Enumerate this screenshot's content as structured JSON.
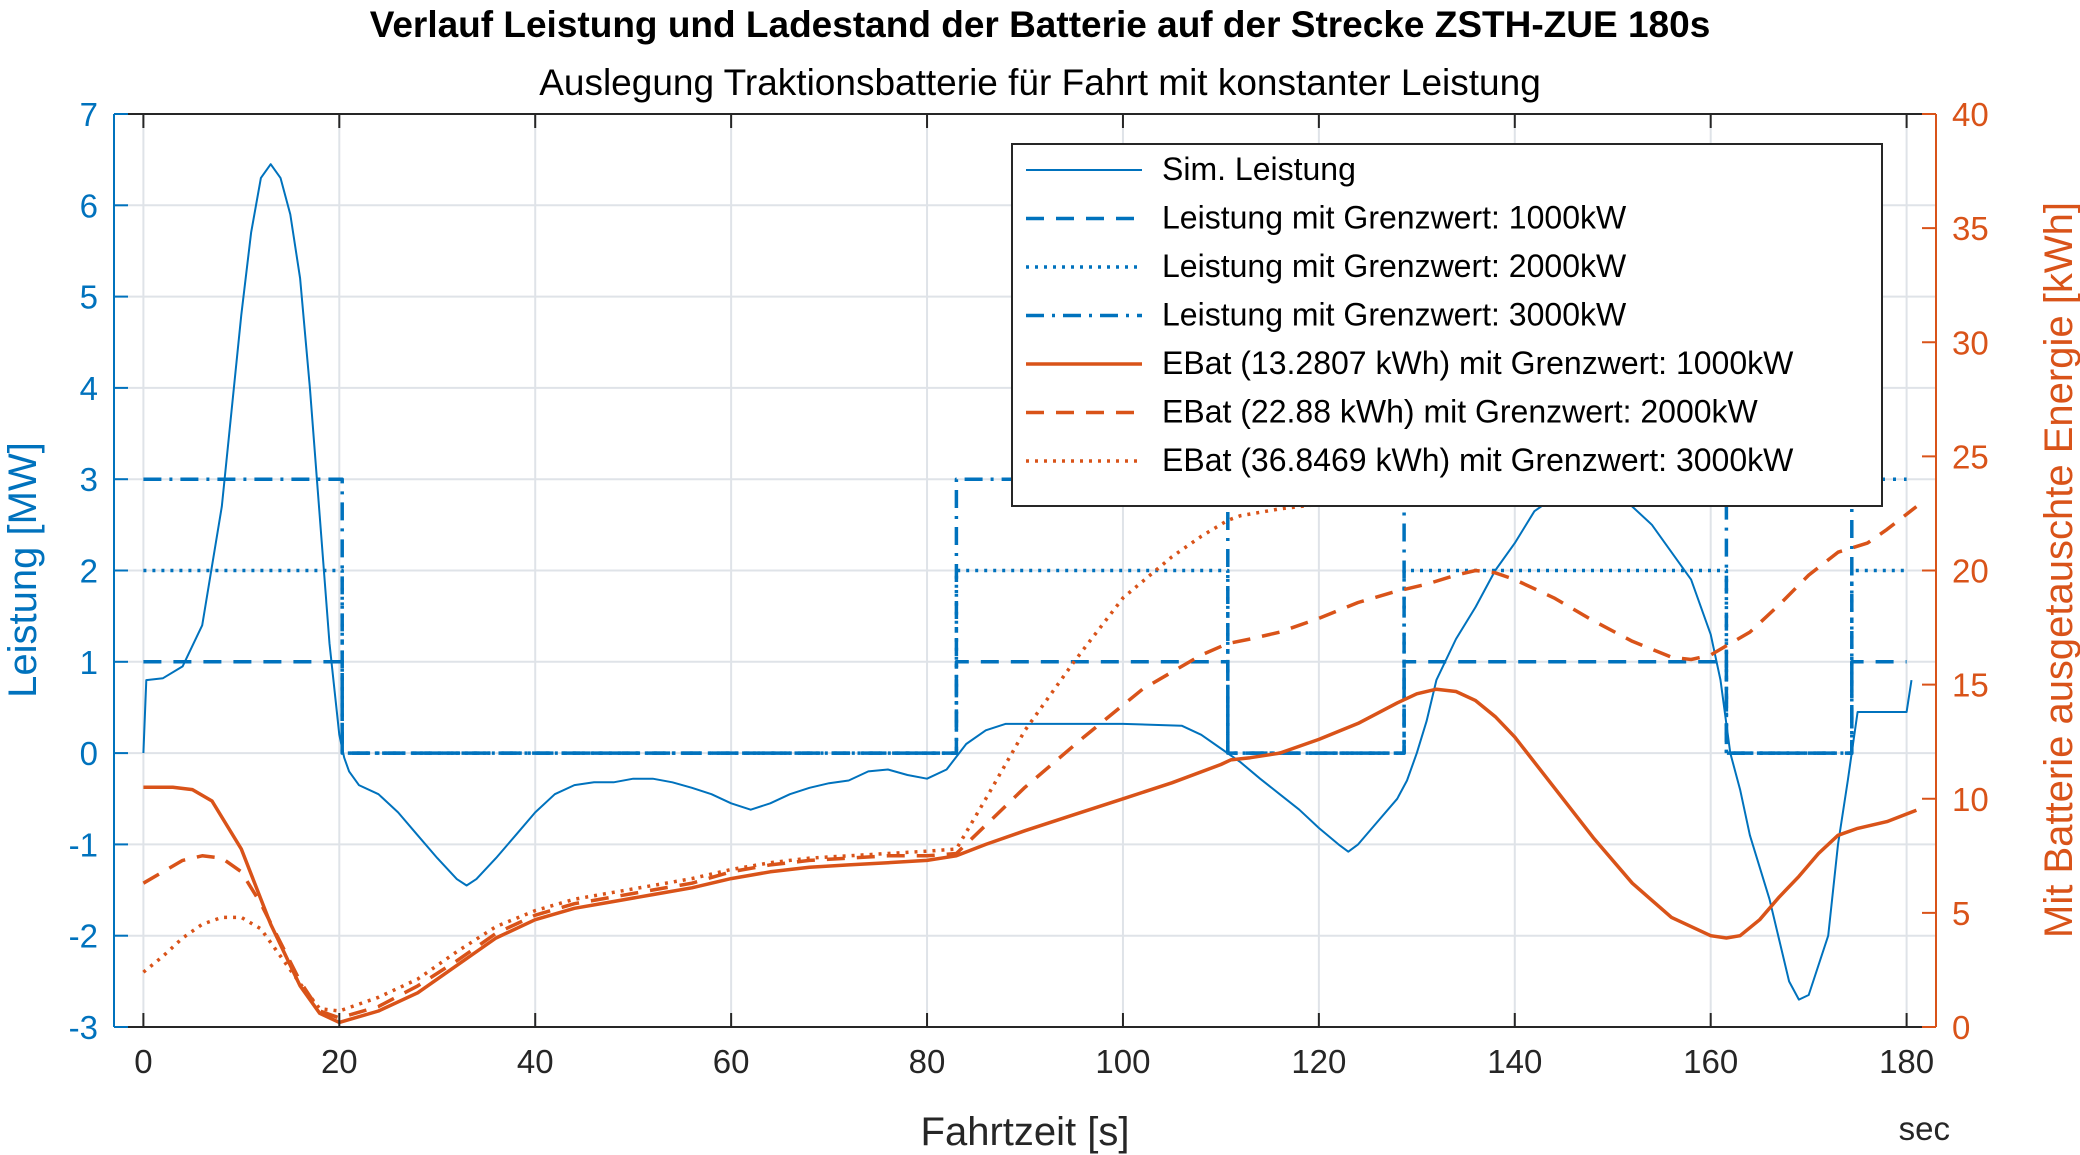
{
  "colors": {
    "left_axis": "#0072BD",
    "right_axis": "#D95319",
    "grid": "#dfe3e8",
    "frame": "#262626"
  },
  "chart_data": {
    "type": "line",
    "title": "Verlauf Leistung und Ladestand der Batterie auf der Strecke ZSTH-ZUE 180s",
    "subtitle": "Auslegung Traktionsbatterie für Fahrt mit konstanter Leistung",
    "xlabel": "Fahrtzeit [s]",
    "x_unit": "sec",
    "ylabel_left": "Leistung [MW]",
    "ylabel_right": "Mit Batterie ausgetauschte Energie [kWh]",
    "xlim": [
      -3,
      183
    ],
    "ylim_left": [
      -3,
      7
    ],
    "ylim_right": [
      0,
      40
    ],
    "x_ticks": [
      "0",
      "20",
      "40",
      "60",
      "80",
      "100",
      "120",
      "140",
      "160",
      "180"
    ],
    "y_ticks_left": [
      "-3",
      "-2",
      "-1",
      "0",
      "1",
      "2",
      "3",
      "4",
      "5",
      "6",
      "7"
    ],
    "y_ticks_right": [
      "0",
      "5",
      "10",
      "15",
      "20",
      "25",
      "30",
      "35",
      "40"
    ],
    "grid": true,
    "legend_position": "top-right",
    "series": [
      {
        "name": "Sim. Leistung",
        "axis": "left",
        "style": "solid",
        "width": "thin",
        "x": [
          0,
          0.3,
          2,
          4,
          6,
          8,
          10,
          11,
          12,
          13,
          14,
          15,
          16,
          17,
          18,
          19,
          20,
          20.5,
          21,
          22,
          24,
          26,
          28,
          30,
          32,
          33,
          34,
          36,
          38,
          40,
          42,
          44,
          46,
          48,
          50,
          52,
          54,
          56,
          58,
          60,
          62,
          64,
          66,
          68,
          70,
          72,
          74,
          76,
          78,
          80,
          82,
          84,
          86,
          88,
          90,
          100,
          106,
          108,
          110,
          112,
          114,
          116,
          118,
          120,
          122,
          123,
          124,
          126,
          128,
          129,
          130,
          131,
          132,
          134,
          136,
          138,
          140,
          142,
          144,
          146,
          148,
          150,
          152,
          154,
          156,
          158,
          160,
          161,
          162,
          163,
          164,
          166,
          168,
          169,
          170,
          172,
          173,
          174,
          175,
          178,
          180,
          180.5
        ],
        "y": [
          0,
          0.8,
          0.82,
          0.95,
          1.4,
          2.7,
          4.8,
          5.7,
          6.3,
          6.45,
          6.3,
          5.9,
          5.2,
          4.0,
          2.6,
          1.2,
          0.2,
          -0.05,
          -0.2,
          -0.35,
          -0.45,
          -0.65,
          -0.9,
          -1.15,
          -1.38,
          -1.45,
          -1.38,
          -1.15,
          -0.9,
          -0.65,
          -0.45,
          -0.35,
          -0.32,
          -0.32,
          -0.28,
          -0.28,
          -0.32,
          -0.38,
          -0.45,
          -0.55,
          -0.62,
          -0.55,
          -0.45,
          -0.38,
          -0.33,
          -0.3,
          -0.2,
          -0.18,
          -0.24,
          -0.28,
          -0.18,
          0.1,
          0.25,
          0.32,
          0.32,
          0.32,
          0.3,
          0.2,
          0.05,
          -0.1,
          -0.28,
          -0.45,
          -0.62,
          -0.82,
          -1.0,
          -1.08,
          -1.0,
          -0.75,
          -0.5,
          -0.3,
          0.0,
          0.35,
          0.8,
          1.25,
          1.6,
          2.0,
          2.3,
          2.65,
          2.8,
          2.9,
          2.9,
          2.85,
          2.7,
          2.5,
          2.2,
          1.9,
          1.3,
          0.8,
          0.0,
          -0.4,
          -0.9,
          -1.6,
          -2.5,
          -2.7,
          -2.65,
          -2.0,
          -1.0,
          -0.3,
          0.45,
          0.45,
          0.45,
          0.8
        ]
      },
      {
        "name": "Leistung mit Grenzwert: 1000kW",
        "axis": "left",
        "style": "dashed",
        "width": "thick",
        "x": [
          0,
          20.3,
          20.3,
          83,
          83,
          110.7,
          110.7,
          128.7,
          128.7,
          161.6,
          161.6,
          174.4,
          174.4,
          180
        ],
        "y": [
          1,
          1,
          0,
          0,
          1,
          1,
          0,
          0,
          1,
          1,
          0,
          0,
          1,
          1
        ]
      },
      {
        "name": "Leistung mit Grenzwert: 2000kW",
        "axis": "left",
        "style": "dotted",
        "width": "thick",
        "x": [
          0,
          20.3,
          20.3,
          83,
          83,
          110.7,
          110.7,
          128.7,
          128.7,
          161.6,
          161.6,
          174.4,
          174.4,
          180
        ],
        "y": [
          2,
          2,
          0,
          0,
          2,
          2,
          0,
          0,
          2,
          2,
          0,
          0,
          2,
          2
        ]
      },
      {
        "name": "Leistung mit Grenzwert: 3000kW",
        "axis": "left",
        "style": "dashdot",
        "width": "thick",
        "x": [
          0,
          20.3,
          20.3,
          83,
          83,
          110.7,
          110.7,
          128.7,
          128.7,
          161.6,
          161.6,
          174.4,
          174.4,
          180
        ],
        "y": [
          3,
          3,
          0,
          0,
          3,
          3,
          0,
          0,
          3,
          3,
          0,
          0,
          3,
          3
        ]
      },
      {
        "name": "EBat (13.2807 kWh) mit Grenzwert: 1000kW",
        "axis": "right",
        "style": "solid",
        "width": "thick",
        "x": [
          0,
          3,
          5,
          7,
          10,
          13,
          16,
          18,
          20,
          24,
          28,
          32,
          36,
          40,
          44,
          48,
          52,
          56,
          60,
          64,
          68,
          72,
          76,
          80,
          83,
          86,
          90,
          95,
          100,
          105,
          110,
          111,
          113,
          116,
          120,
          124,
          128,
          130,
          132,
          134,
          136,
          138,
          140,
          144,
          148,
          152,
          156,
          160,
          161.6,
          163,
          165,
          167,
          169,
          171,
          173,
          175,
          178,
          181
        ],
        "y": [
          10.5,
          10.5,
          10.4,
          9.9,
          7.8,
          4.5,
          1.8,
          0.6,
          0.2,
          0.7,
          1.5,
          2.7,
          3.9,
          4.7,
          5.2,
          5.5,
          5.8,
          6.1,
          6.5,
          6.8,
          7.0,
          7.1,
          7.2,
          7.3,
          7.5,
          8.0,
          8.6,
          9.3,
          10.0,
          10.7,
          11.5,
          11.7,
          11.8,
          12.0,
          12.6,
          13.3,
          14.2,
          14.6,
          14.8,
          14.7,
          14.3,
          13.6,
          12.7,
          10.5,
          8.3,
          6.3,
          4.8,
          4.0,
          3.9,
          4.0,
          4.7,
          5.7,
          6.6,
          7.6,
          8.4,
          8.7,
          9.0,
          9.5
        ]
      },
      {
        "name": "EBat (22.88 kWh) mit Grenzwert: 2000kW",
        "axis": "right",
        "style": "dashed",
        "width": "thick",
        "x": [
          0,
          2,
          4,
          6,
          8,
          10,
          12,
          14,
          16,
          18,
          20,
          24,
          28,
          32,
          36,
          40,
          44,
          48,
          52,
          56,
          60,
          64,
          68,
          72,
          76,
          80,
          83,
          90,
          96,
          102,
          108,
          110.7,
          113,
          116,
          120,
          124,
          128,
          129,
          131,
          134,
          136,
          138,
          140,
          144,
          148,
          152,
          156,
          158,
          160,
          161.6,
          164,
          167,
          170,
          173,
          176,
          178,
          181
        ],
        "y": [
          6.3,
          6.8,
          7.3,
          7.5,
          7.4,
          6.8,
          5.4,
          3.7,
          2.0,
          0.7,
          0.4,
          0.9,
          1.8,
          2.9,
          4.1,
          4.9,
          5.4,
          5.7,
          6.0,
          6.3,
          6.8,
          7.1,
          7.3,
          7.4,
          7.5,
          7.5,
          7.6,
          10.5,
          12.7,
          14.8,
          16.3,
          16.8,
          17.0,
          17.3,
          17.9,
          18.6,
          19.1,
          19.2,
          19.4,
          19.8,
          20.0,
          19.9,
          19.6,
          18.8,
          17.8,
          16.9,
          16.2,
          16.1,
          16.3,
          16.7,
          17.3,
          18.5,
          19.8,
          20.8,
          21.2,
          21.8,
          22.8
        ]
      },
      {
        "name": "EBat (36.8469 kWh) mit Grenzwert: 3000kW",
        "axis": "right",
        "style": "dotted",
        "width": "thick",
        "x": [
          0,
          2,
          4,
          6,
          8,
          10,
          12,
          14,
          16,
          18,
          20,
          24,
          28,
          32,
          36,
          40,
          44,
          48,
          52,
          56,
          60,
          64,
          68,
          72,
          76,
          80,
          83,
          86,
          90,
          95,
          100,
          105,
          108,
          110.7,
          112,
          116,
          120,
          124
        ],
        "y": [
          2.4,
          3.1,
          3.9,
          4.5,
          4.8,
          4.8,
          4.3,
          3.1,
          1.9,
          0.8,
          0.7,
          1.3,
          2.1,
          3.3,
          4.4,
          5.1,
          5.6,
          5.9,
          6.2,
          6.5,
          6.9,
          7.2,
          7.4,
          7.5,
          7.6,
          7.7,
          7.8,
          10.0,
          13.0,
          16.0,
          18.8,
          20.6,
          21.5,
          22.2,
          22.4,
          22.7,
          22.9,
          23.0
        ]
      }
    ]
  }
}
